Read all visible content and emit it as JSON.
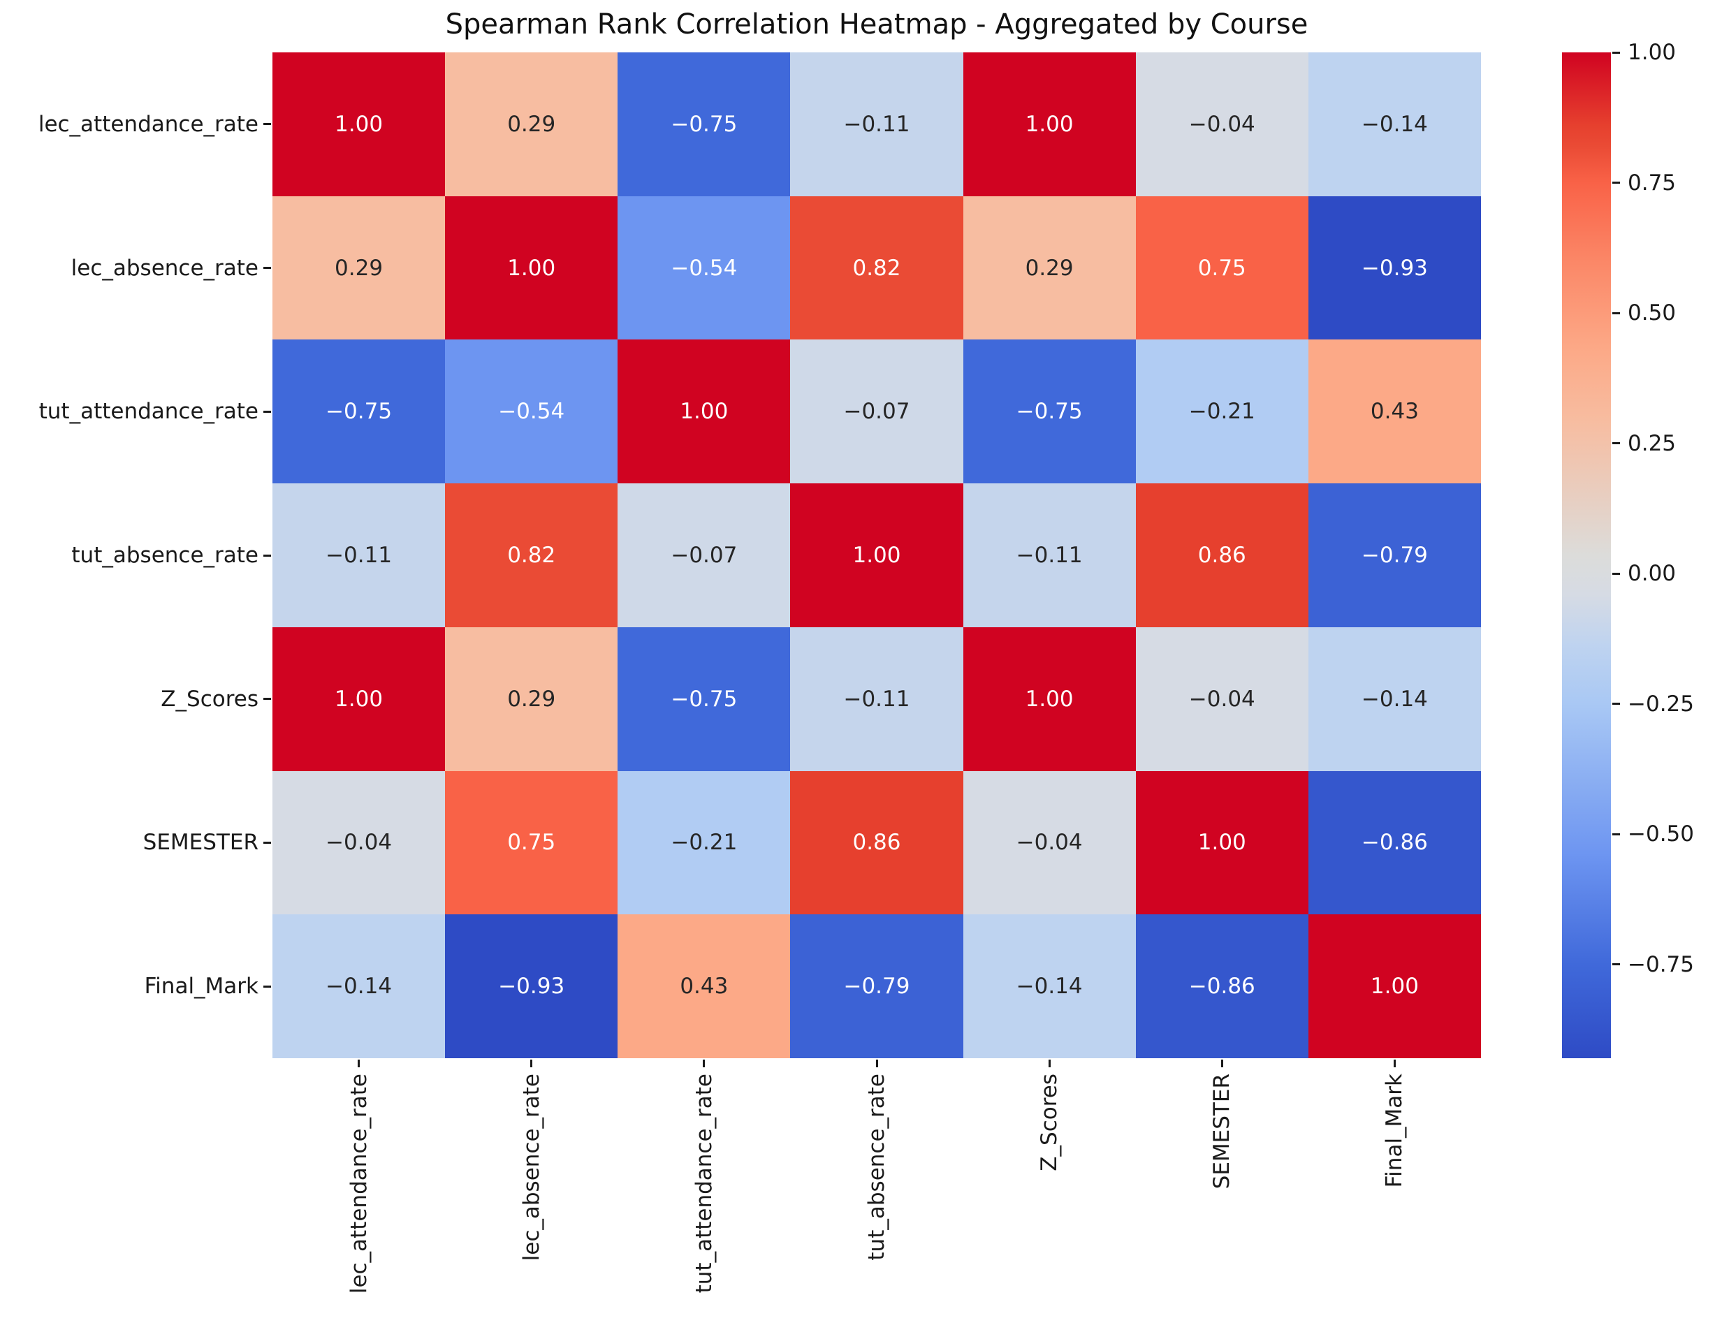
{
  "window": {
    "background": "#ffffff"
  },
  "chart_data": {
    "type": "heatmap",
    "title": "Spearman Rank Correlation Heatmap - Aggregated by Course",
    "categories": [
      "lec_attendance_rate",
      "lec_absence_rate",
      "tut_attendance_rate",
      "tut_absence_rate",
      "Z_Scores",
      "SEMESTER",
      "Final_Mark"
    ],
    "matrix": [
      [
        1.0,
        0.29,
        -0.75,
        -0.11,
        1.0,
        -0.04,
        -0.14
      ],
      [
        0.29,
        1.0,
        -0.54,
        0.82,
        0.29,
        0.75,
        -0.93
      ],
      [
        -0.75,
        -0.54,
        1.0,
        -0.07,
        -0.75,
        -0.21,
        0.43
      ],
      [
        -0.11,
        0.82,
        -0.07,
        1.0,
        -0.11,
        0.86,
        -0.79
      ],
      [
        1.0,
        0.29,
        -0.75,
        -0.11,
        1.0,
        -0.04,
        -0.14
      ],
      [
        -0.04,
        0.75,
        -0.21,
        0.86,
        -0.04,
        1.0,
        -0.86
      ],
      [
        -0.14,
        -0.93,
        0.43,
        -0.79,
        -0.14,
        -0.86,
        1.0
      ]
    ],
    "scale": {
      "vmin": -0.93,
      "vmax": 1.0
    },
    "colorbar": {
      "position": "right",
      "ticks": [
        1.0,
        0.75,
        0.5,
        0.25,
        0.0,
        -0.25,
        -0.5,
        -0.75
      ]
    },
    "colormap_stops": [
      {
        "value": -0.93,
        "color": "#2e4bc5"
      },
      {
        "value": -0.75,
        "color": "#4069da"
      },
      {
        "value": -0.54,
        "color": "#6d95f1"
      },
      {
        "value": -0.25,
        "color": "#a9c8f4"
      },
      {
        "value": -0.14,
        "color": "#bed3f0"
      },
      {
        "value": -0.04,
        "color": "#d6dbe4"
      },
      {
        "value": 0.035,
        "color": "#dcdcda"
      },
      {
        "value": 0.29,
        "color": "#f7bda1"
      },
      {
        "value": 0.43,
        "color": "#fca987"
      },
      {
        "value": 0.6,
        "color": "#fb8767"
      },
      {
        "value": 0.75,
        "color": "#f96247"
      },
      {
        "value": 0.82,
        "color": "#ea4b35"
      },
      {
        "value": 0.86,
        "color": "#e6402e"
      },
      {
        "value": 1.0,
        "color": "#d00321"
      }
    ],
    "annotation_text_colors": {
      "on_dark": "#ffffff",
      "on_light": "#262626"
    },
    "axis_text_color": "#1a1a1a",
    "grid": false,
    "legend_position": "right-colorbar"
  }
}
